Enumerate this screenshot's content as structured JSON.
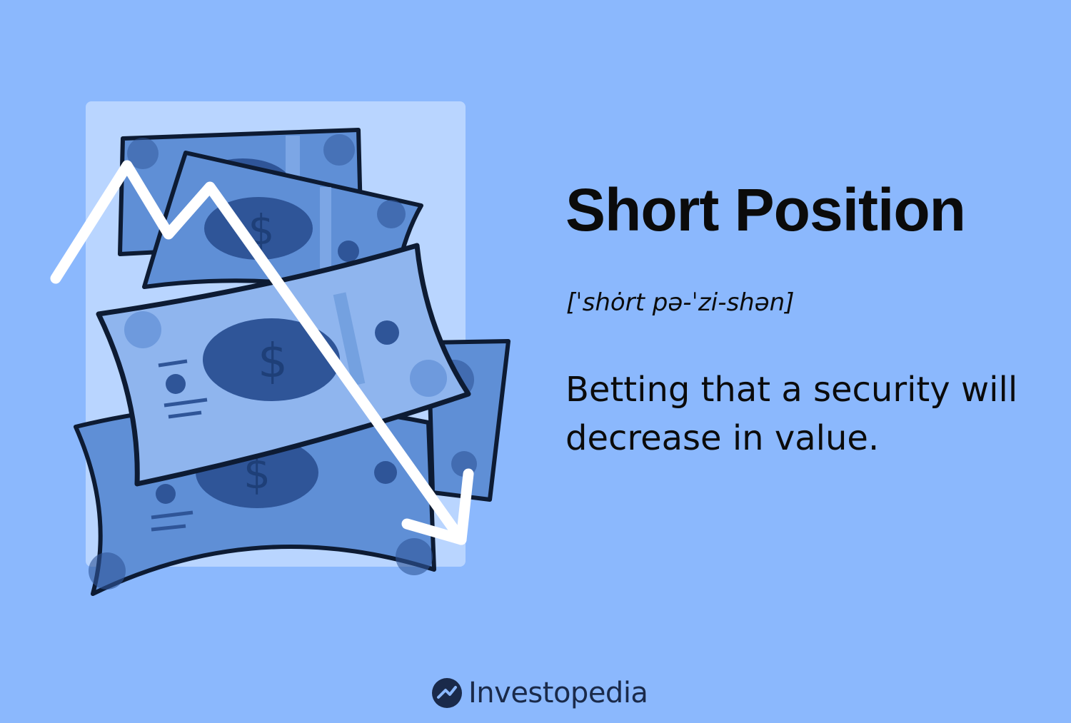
{
  "term": "Short Position",
  "pronunciation": "[ˈshȯrt pə-ˈzi-shən]",
  "definition": "Betting that a security will decrease in value.",
  "brand": {
    "name": "Investopedia"
  },
  "illustration": {
    "currency_symbol": "$",
    "colors": {
      "background": "#8bb8fd",
      "panel": "#b9d5ff",
      "bill": "#5f8fd6",
      "bill_light": "#8fb5ee",
      "bill_dark": "#2f5598",
      "outline": "#0d1b33",
      "arrow": "#ffffff"
    }
  }
}
